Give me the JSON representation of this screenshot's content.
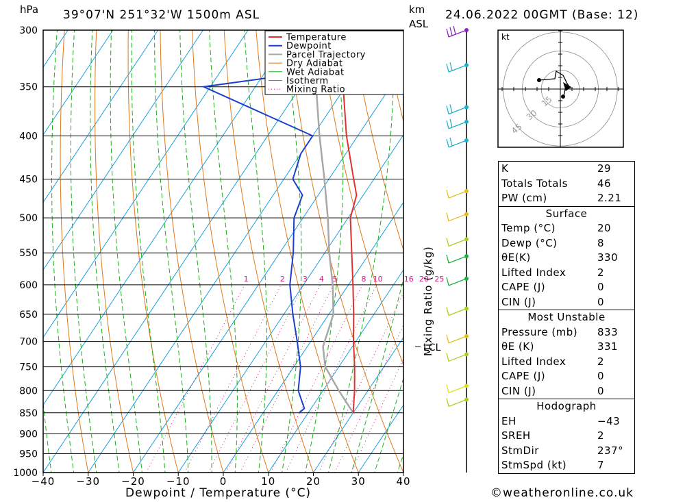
{
  "header": {
    "location": "39°07'N  251°32'W  1500m  ASL",
    "datetime": "24.06.2022  00GMT  (Base: 12)",
    "pressure_unit": "hPa",
    "height_unit_line1": "km",
    "height_unit_line2": "ASL"
  },
  "chart_data": {
    "type": "skew-t",
    "xlabel": "Dewpoint / Temperature (°C)",
    "ylabel": "hPa",
    "right_axis_label": "Mixing Ratio (g/kg)",
    "x_ticks": [
      -40,
      -30,
      -20,
      -10,
      0,
      10,
      20,
      30,
      40
    ],
    "x_tick_labels": [
      "−40",
      "−30",
      "−20",
      "−10",
      "0",
      "10",
      "20",
      "30",
      "40"
    ],
    "p_levels": [
      300,
      350,
      400,
      450,
      500,
      550,
      600,
      650,
      700,
      750,
      800,
      850,
      900,
      950,
      1000
    ],
    "xlim": [
      -40,
      40
    ],
    "plim": [
      1000,
      300
    ],
    "lcl_label": "LCL",
    "lcl_pressure": 710,
    "mixing_ratio_labels": [
      "1",
      "2",
      "3",
      "4",
      "5",
      "8",
      "10",
      "16",
      "20",
      "25"
    ],
    "mixing_ratio_values": [
      1,
      2,
      3,
      4,
      5,
      8,
      10,
      16,
      20,
      25
    ],
    "legend": [
      "Temperature",
      "Dewpoint",
      "Parcel Trajectory",
      "Dry Adiabat",
      "Wet Adiabat",
      "Isotherm",
      "Mixing Ratio"
    ],
    "colors": {
      "temperature": "#e03030",
      "dewpoint": "#1a3fcc",
      "parcel": "#a8a8a8",
      "dry_adiabat": "#e07818",
      "wet_adiabat": "#18b018",
      "isotherm": "#1aa0e0",
      "mixing_ratio": "#d01880"
    },
    "series": [
      {
        "name": "Temperature",
        "points": [
          [
            850,
            20.0
          ],
          [
            800,
            17.0
          ],
          [
            750,
            13.5
          ],
          [
            700,
            9.5
          ],
          [
            650,
            5.5
          ],
          [
            600,
            1.0
          ],
          [
            550,
            -4.0
          ],
          [
            500,
            -9.5
          ],
          [
            470,
            -11.5
          ],
          [
            450,
            -14.5
          ],
          [
            400,
            -22.5
          ],
          [
            350,
            -30.5
          ],
          [
            300,
            -38.0
          ]
        ]
      },
      {
        "name": "Dewpoint",
        "points": [
          [
            850,
            8.0
          ],
          [
            840,
            8.5
          ],
          [
            800,
            4.5
          ],
          [
            750,
            1.5
          ],
          [
            700,
            -3.0
          ],
          [
            650,
            -8.0
          ],
          [
            600,
            -13.0
          ],
          [
            550,
            -17.0
          ],
          [
            500,
            -22.0
          ],
          [
            470,
            -23.5
          ],
          [
            450,
            -28.0
          ],
          [
            420,
            -30.0
          ],
          [
            400,
            -30.0
          ],
          [
            350,
            -61.5
          ],
          [
            340,
            -46.0
          ],
          [
            300,
            -50.0
          ]
        ]
      },
      {
        "name": "Parcel Trajectory",
        "points": [
          [
            850,
            20.0
          ],
          [
            800,
            13.5
          ],
          [
            750,
            7.0
          ],
          [
            710,
            3.5
          ],
          [
            650,
            1.0
          ],
          [
            600,
            -3.5
          ],
          [
            550,
            -9.0
          ],
          [
            500,
            -14.5
          ],
          [
            450,
            -21.0
          ],
          [
            400,
            -28.5
          ],
          [
            350,
            -36.5
          ],
          [
            300,
            -45.5
          ]
        ]
      }
    ]
  },
  "hodograph": {
    "unit_label": "kt",
    "ring_labels": [
      "15",
      "30",
      "45"
    ]
  },
  "stats": {
    "indices": [
      {
        "label": "K",
        "value": "29"
      },
      {
        "label": "Totals Totals",
        "value": "46"
      },
      {
        "label": "PW (cm)",
        "value": "2.21"
      }
    ],
    "surface": {
      "title": "Surface",
      "rows": [
        {
          "label": "Temp (°C)",
          "value": "20"
        },
        {
          "label": "Dewp (°C)",
          "value": "8"
        },
        {
          "label": "θE(K)",
          "value": "330"
        },
        {
          "label": "Lifted Index",
          "value": "2"
        },
        {
          "label": "CAPE (J)",
          "value": "0"
        },
        {
          "label": "CIN (J)",
          "value": "0"
        }
      ]
    },
    "most_unstable": {
      "title": "Most Unstable",
      "rows": [
        {
          "label": "Pressure (mb)",
          "value": "833"
        },
        {
          "label": "θE (K)",
          "value": "331"
        },
        {
          "label": "Lifted Index",
          "value": "2"
        },
        {
          "label": "CAPE (J)",
          "value": "0"
        },
        {
          "label": "CIN (J)",
          "value": "0"
        }
      ]
    },
    "hodograph": {
      "title": "Hodograph",
      "rows": [
        {
          "label": "EH",
          "value": "−43"
        },
        {
          "label": "SREH",
          "value": "2"
        },
        {
          "label": "StmDir",
          "value": "237°"
        },
        {
          "label": "StmSpd (kt)",
          "value": "7"
        }
      ]
    }
  },
  "footer": {
    "copyright": "©weatheronline.co.uk"
  }
}
